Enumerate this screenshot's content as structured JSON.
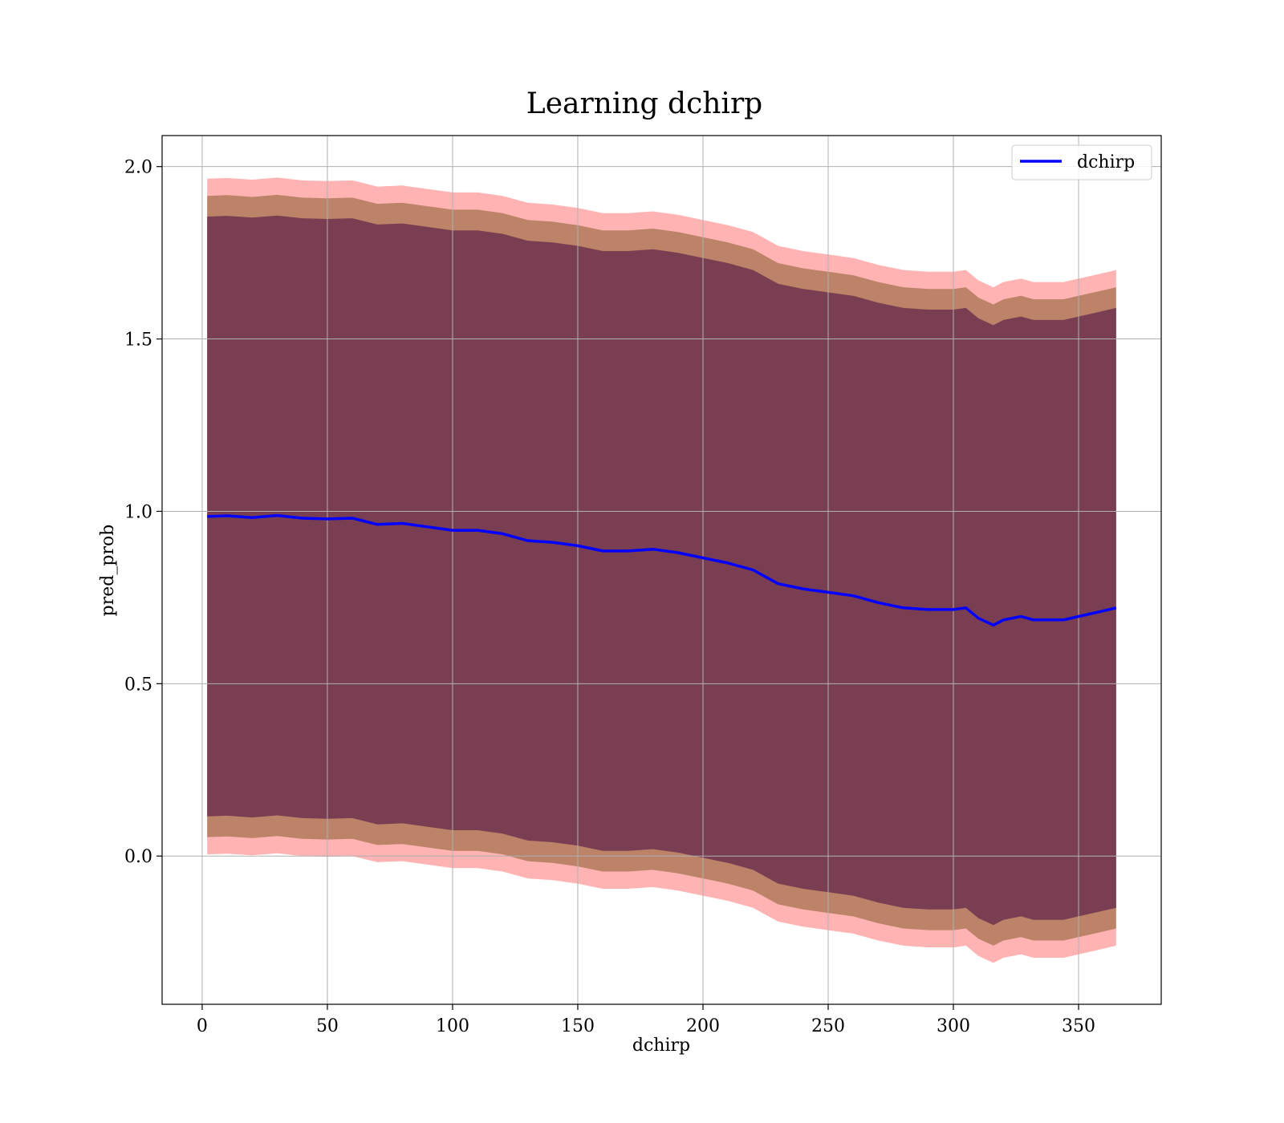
{
  "chart_data": {
    "type": "line",
    "title": "Learning dchirp",
    "xlabel": "dchirp",
    "ylabel": "pred_prob",
    "xlim": [
      -16,
      383
    ],
    "ylim": [
      -0.43,
      2.09
    ],
    "xticks": [
      0,
      50,
      100,
      150,
      200,
      250,
      300,
      350
    ],
    "yticks": [
      0.0,
      0.5,
      1.0,
      1.5,
      2.0
    ],
    "xtick_labels": [
      "0",
      "50",
      "100",
      "150",
      "200",
      "250",
      "300",
      "350"
    ],
    "ytick_labels": [
      "0.0",
      "0.5",
      "1.0",
      "1.5",
      "2.0"
    ],
    "grid": true,
    "legend_position": "top-right",
    "series": [
      {
        "name": "dchirp",
        "color": "#0000ff",
        "x": [
          2,
          10,
          20,
          30,
          40,
          50,
          60,
          70,
          80,
          90,
          100,
          110,
          120,
          130,
          140,
          150,
          160,
          170,
          180,
          190,
          200,
          210,
          220,
          230,
          240,
          250,
          260,
          270,
          280,
          290,
          300,
          305,
          310,
          316,
          320,
          327,
          332,
          338,
          344,
          350,
          358,
          365
        ],
        "values": [
          0.985,
          0.987,
          0.982,
          0.988,
          0.98,
          0.978,
          0.98,
          0.962,
          0.965,
          0.955,
          0.945,
          0.945,
          0.935,
          0.915,
          0.91,
          0.9,
          0.885,
          0.885,
          0.89,
          0.88,
          0.865,
          0.85,
          0.83,
          0.79,
          0.775,
          0.765,
          0.755,
          0.735,
          0.72,
          0.715,
          0.715,
          0.72,
          0.69,
          0.67,
          0.685,
          0.695,
          0.685,
          0.685,
          0.685,
          0.695,
          0.708,
          0.72
        ]
      }
    ],
    "bands": [
      {
        "color": "#ff9999",
        "width": 0.98
      },
      {
        "color": "#b07a5a",
        "width": 0.93
      },
      {
        "color": "#7a3e52",
        "width": 0.87
      }
    ]
  }
}
